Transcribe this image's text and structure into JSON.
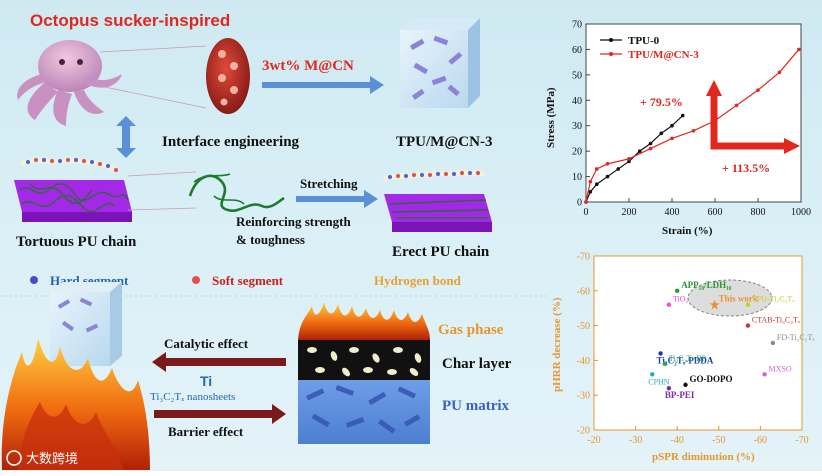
{
  "top": {
    "title": "Octopus sucker-inspired",
    "dose": "3wt% M@CN",
    "interface": "Interface engineering",
    "composite": "TPU/M@CN-3",
    "stretching": "Stretching",
    "tortuous": "Tortuous PU chain",
    "reinforcing_l1": "Reinforcing strength",
    "reinforcing_l2": "& toughness",
    "erect": "Erect PU chain"
  },
  "legend": {
    "hard": "Hard segment",
    "soft": "Soft segment",
    "hbond": "Hydrogen bond"
  },
  "bottom": {
    "catalytic": "Catalytic effect",
    "ti": "Ti",
    "nanosheets": "Ti₃C₂Tₓ nanosheets",
    "barrier": "Barrier effect",
    "gas": "Gas phase",
    "char": "Char layer",
    "matrix": "PU matrix"
  },
  "watermark": "大数跨境",
  "colors": {
    "red": "#e0281e",
    "blue_text": "#2464b4",
    "orange": "#e8962c",
    "arrow_blue": "#5b8fd8",
    "dark_red": "#7a1a1a",
    "purple": "#9a2ae0"
  },
  "chart_data": [
    {
      "type": "line",
      "xlabel": "Strain (%)",
      "ylabel": "Stress (MPa)",
      "xlim": [
        0,
        1000
      ],
      "ylim": [
        0,
        70
      ],
      "xticks": [
        "0",
        "200",
        "400",
        "600",
        "800",
        "1000"
      ],
      "yticks": [
        "0",
        "10",
        "20",
        "30",
        "40",
        "50",
        "60",
        "70"
      ],
      "legend_position": "top-left",
      "series": [
        {
          "name": "TPU-0",
          "color": "#111111",
          "x": [
            0,
            20,
            50,
            100,
            150,
            200,
            250,
            300,
            350,
            400,
            450
          ],
          "y": [
            0,
            4,
            7,
            10,
            13,
            16,
            20,
            23,
            27,
            30,
            34
          ]
        },
        {
          "name": "TPU/M@CN-3",
          "color": "#e0281e",
          "x": [
            0,
            20,
            50,
            100,
            200,
            300,
            400,
            500,
            600,
            700,
            800,
            900,
            990
          ],
          "y": [
            0,
            8,
            13,
            15,
            17,
            21,
            25,
            28,
            32,
            38,
            44,
            51,
            60
          ]
        }
      ],
      "annotations": [
        "+ 79.5%",
        "+ 113.5%"
      ]
    },
    {
      "type": "scatter",
      "xlabel": "pSPR diminution (%)",
      "ylabel": "pHRR decrease (%)",
      "xlim": [
        -20,
        -70
      ],
      "ylim": [
        -20,
        -70
      ],
      "xticks": [
        "-20",
        "-30",
        "-40",
        "-50",
        "-60",
        "-70"
      ],
      "yticks": [
        "-20",
        "-30",
        "-40",
        "-50",
        "-60",
        "-70"
      ],
      "points": [
        {
          "label": "APP₁₀/LDH₁₀",
          "x": -40,
          "y": -60,
          "color": "#2a9a2a"
        },
        {
          "label": "This work",
          "x": -49,
          "y": -56,
          "color": "#e8962c"
        },
        {
          "label": "TiO₂",
          "x": -38,
          "y": -56,
          "color": "#ff44cc"
        },
        {
          "label": "TPU-Ti₃C₂Tₓ",
          "x": -57,
          "y": -56,
          "color": "#cccc22"
        },
        {
          "label": "CTAB-Ti₃C₂Tₓ",
          "x": -57,
          "y": -50,
          "color": "#cc3333"
        },
        {
          "label": "FD-Ti₃C₂Tₓ",
          "x": -63,
          "y": -45,
          "color": "#888888"
        },
        {
          "label": "Ti₃C₂Tₓ-PDDA",
          "x": -36,
          "y": -42,
          "color": "#1a3aaa"
        },
        {
          "label": "Ti₃C₂Tₓ-BP",
          "x": -37,
          "y": -39,
          "color": "#22aa66"
        },
        {
          "label": "CPHN",
          "x": -34,
          "y": -36,
          "color": "#22aacc"
        },
        {
          "label": "MXSO",
          "x": -61,
          "y": -36,
          "color": "#cc66cc"
        },
        {
          "label": "GO-DOPO",
          "x": -42,
          "y": -33,
          "color": "#111111"
        },
        {
          "label": "BP-PEI",
          "x": -38,
          "y": -32,
          "color": "#7a2ab0"
        }
      ]
    }
  ]
}
